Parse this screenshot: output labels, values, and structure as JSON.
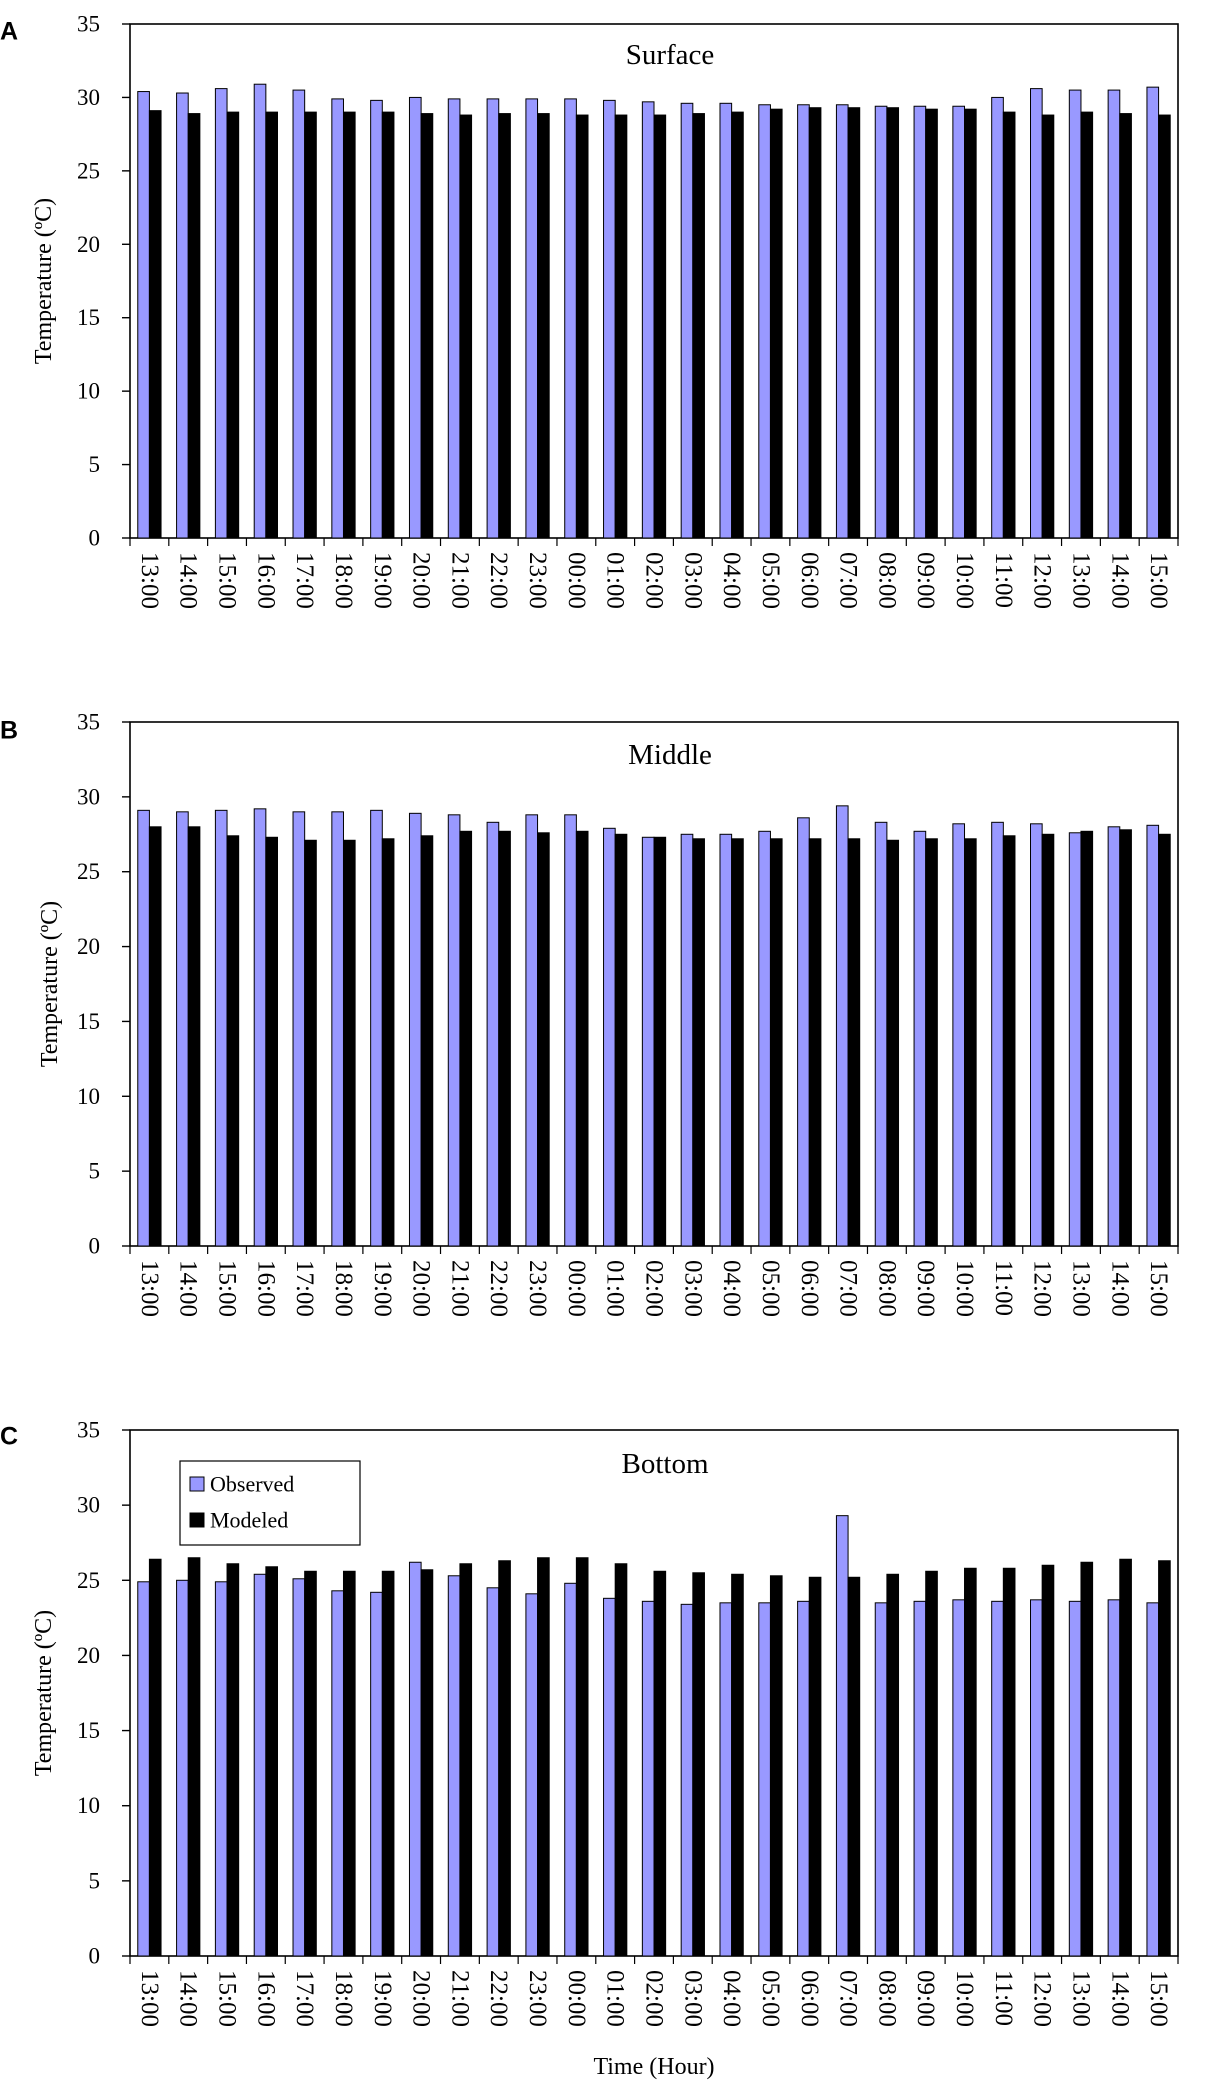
{
  "chart_data": [
    {
      "type": "bar",
      "panel_letter": "A",
      "title": "Surface",
      "ylabel": "Temperature (ºC)",
      "xlabel": "",
      "ylim": [
        0,
        35
      ],
      "yticks": [
        0,
        5,
        10,
        15,
        20,
        25,
        30,
        35
      ],
      "grid": false,
      "categories": [
        "13:00",
        "14:00",
        "15:00",
        "16:00",
        "17:00",
        "18:00",
        "19:00",
        "20:00",
        "21:00",
        "22:00",
        "23:00",
        "00:00",
        "01:00",
        "02:00",
        "03:00",
        "04:00",
        "05:00",
        "06:00",
        "07:00",
        "08:00",
        "09:00",
        "10:00",
        "11:00",
        "12:00",
        "13:00",
        "14:00",
        "15:00"
      ],
      "series": [
        {
          "name": "Observed",
          "color": "#9999ff",
          "values": [
            30.4,
            30.3,
            30.6,
            30.9,
            30.5,
            29.9,
            29.8,
            30.0,
            29.9,
            29.9,
            29.9,
            29.9,
            29.8,
            29.7,
            29.6,
            29.6,
            29.5,
            29.5,
            29.5,
            29.4,
            29.4,
            29.4,
            30.0,
            30.6,
            30.5,
            30.5,
            30.7
          ]
        },
        {
          "name": "Modeled",
          "color": "#000000",
          "values": [
            29.1,
            28.9,
            29.0,
            29.0,
            29.0,
            29.0,
            29.0,
            28.9,
            28.8,
            28.9,
            28.9,
            28.8,
            28.8,
            28.8,
            28.9,
            29.0,
            29.2,
            29.3,
            29.3,
            29.3,
            29.2,
            29.2,
            29.0,
            28.8,
            29.0,
            28.9,
            28.8
          ]
        }
      ]
    },
    {
      "type": "bar",
      "panel_letter": "B",
      "title": "Middle",
      "ylabel": "Temperature (ºC)",
      "xlabel": "",
      "ylim": [
        0,
        35
      ],
      "yticks": [
        0,
        5,
        10,
        15,
        20,
        25,
        30,
        35
      ],
      "grid": false,
      "categories": [
        "13:00",
        "14:00",
        "15:00",
        "16:00",
        "17:00",
        "18:00",
        "19:00",
        "20:00",
        "21:00",
        "22:00",
        "23:00",
        "00:00",
        "01:00",
        "02:00",
        "03:00",
        "04:00",
        "05:00",
        "06:00",
        "07:00",
        "08:00",
        "09:00",
        "10:00",
        "11:00",
        "12:00",
        "13:00",
        "14:00",
        "15:00"
      ],
      "series": [
        {
          "name": "Observed",
          "color": "#9999ff",
          "values": [
            29.1,
            29.0,
            29.1,
            29.2,
            29.0,
            29.0,
            29.1,
            28.9,
            28.8,
            28.3,
            28.8,
            28.8,
            27.9,
            27.3,
            27.5,
            27.5,
            27.7,
            28.6,
            29.4,
            28.3,
            27.7,
            28.2,
            28.3,
            28.2,
            27.6,
            28.0,
            28.1
          ]
        },
        {
          "name": "Modeled",
          "color": "#000000",
          "values": [
            28.0,
            28.0,
            27.4,
            27.3,
            27.1,
            27.1,
            27.2,
            27.4,
            27.7,
            27.7,
            27.6,
            27.7,
            27.5,
            27.3,
            27.2,
            27.2,
            27.2,
            27.2,
            27.2,
            27.1,
            27.2,
            27.2,
            27.4,
            27.5,
            27.7,
            27.8,
            27.5
          ]
        }
      ]
    },
    {
      "type": "bar",
      "panel_letter": "C",
      "title": "Bottom",
      "ylabel": "Temperature (ºC)",
      "xlabel": "Time (Hour)",
      "ylim": [
        0,
        35
      ],
      "yticks": [
        0,
        5,
        10,
        15,
        20,
        25,
        30,
        35
      ],
      "grid": false,
      "legend_position": "top-left",
      "categories": [
        "13:00",
        "14:00",
        "15:00",
        "16:00",
        "17:00",
        "18:00",
        "19:00",
        "20:00",
        "21:00",
        "22:00",
        "23:00",
        "00:00",
        "01:00",
        "02:00",
        "03:00",
        "04:00",
        "05:00",
        "06:00",
        "07:00",
        "08:00",
        "09:00",
        "10:00",
        "11:00",
        "12:00",
        "13:00",
        "14:00",
        "15:00"
      ],
      "series": [
        {
          "name": "Observed",
          "color": "#9999ff",
          "values": [
            24.9,
            25.0,
            24.9,
            25.4,
            25.1,
            24.3,
            24.2,
            26.2,
            25.3,
            24.5,
            24.1,
            24.8,
            23.8,
            23.6,
            23.4,
            23.5,
            23.5,
            23.6,
            29.3,
            23.5,
            23.6,
            23.7,
            23.6,
            23.7,
            23.6,
            23.7,
            23.5
          ]
        },
        {
          "name": "Modeled",
          "color": "#000000",
          "values": [
            26.4,
            26.5,
            26.1,
            25.9,
            25.6,
            25.6,
            25.6,
            25.7,
            26.1,
            26.3,
            26.5,
            26.5,
            26.1,
            25.6,
            25.5,
            25.4,
            25.3,
            25.2,
            25.2,
            25.4,
            25.6,
            25.8,
            25.8,
            26.0,
            26.2,
            26.4,
            26.3
          ]
        }
      ]
    }
  ]
}
